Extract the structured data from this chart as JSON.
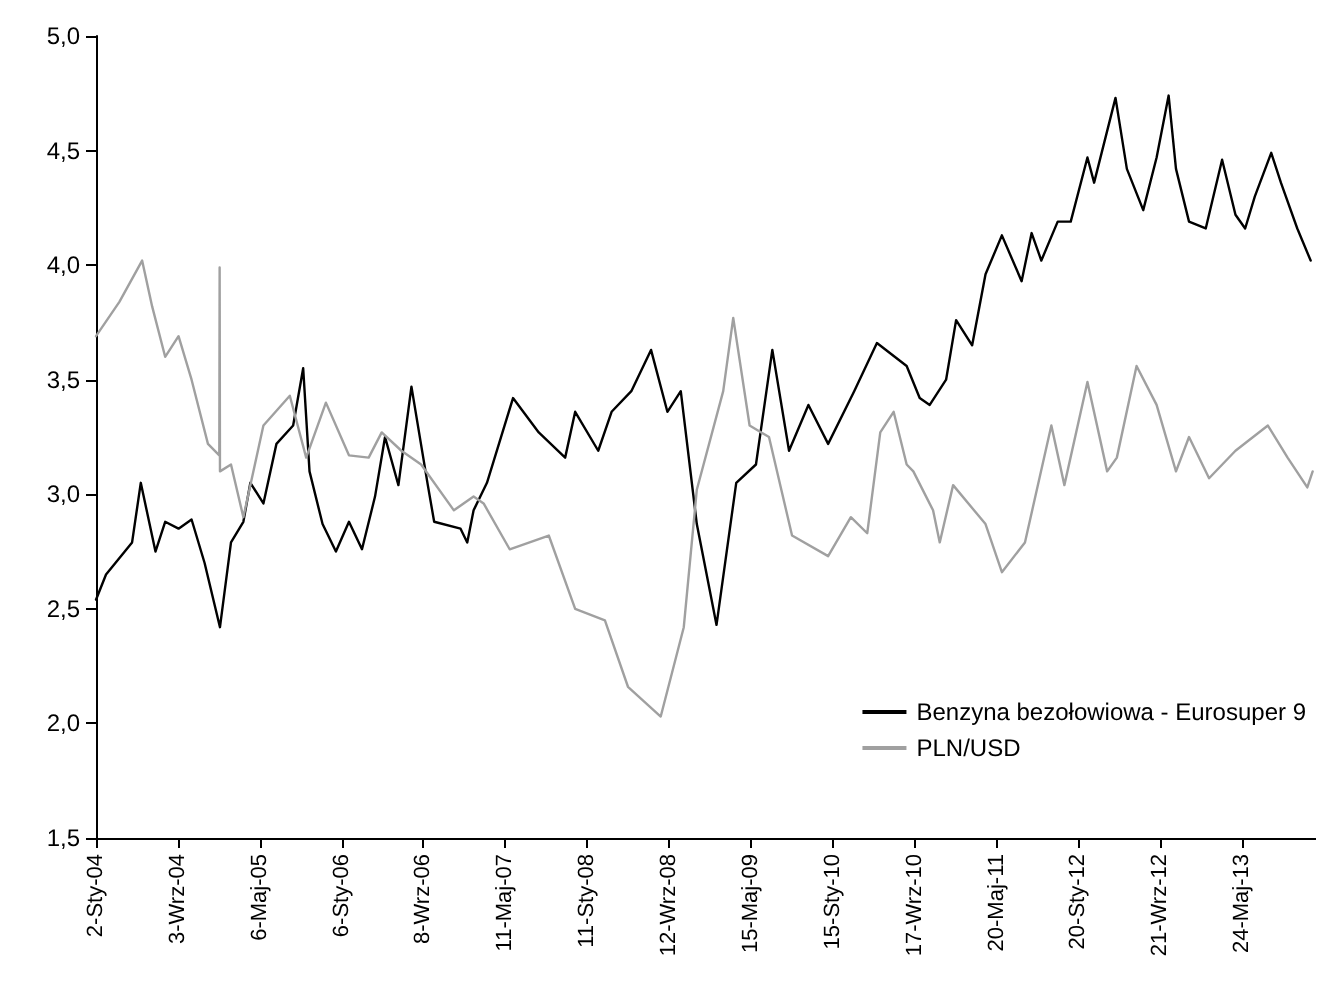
{
  "chart_data": {
    "type": "line",
    "series": [
      {
        "name": "Benzyna bezołowiowa - Eurosuper 9",
        "color": "#000000",
        "x": [
          "2004-01-02",
          "2004-02-01",
          "2004-04-19",
          "2004-05-15",
          "2004-06-28",
          "2004-07-27",
          "2004-09-05",
          "2004-10-14",
          "2004-11-22",
          "2005-01-07",
          "2005-02-09",
          "2005-03-18",
          "2005-04-08",
          "2005-05-17",
          "2005-06-25",
          "2005-08-14",
          "2005-09-13",
          "2005-10-02",
          "2005-11-10",
          "2005-12-20",
          "2006-01-28",
          "2006-03-08",
          "2006-04-16",
          "2006-05-16",
          "2006-06-25",
          "2006-08-03",
          "2006-09-21",
          "2006-10-10",
          "2006-12-28",
          "2007-01-17",
          "2007-02-05",
          "2007-03-17",
          "2007-06-03",
          "2007-08-19",
          "2007-11-06",
          "2007-12-06",
          "2008-02-13",
          "2008-03-24",
          "2008-05-22",
          "2008-07-20",
          "2008-09-07",
          "2008-10-17",
          "2008-12-04",
          "2009-02-01",
          "2009-04-01",
          "2009-05-30",
          "2009-07-18",
          "2009-09-06",
          "2009-11-03",
          "2010-01-01",
          "2010-03-20",
          "2010-05-27",
          "2010-08-24",
          "2010-10-02",
          "2010-11-01",
          "2010-12-20",
          "2011-01-19",
          "2011-03-08",
          "2011-04-17",
          "2011-06-05",
          "2011-08-03",
          "2011-09-02",
          "2011-10-01",
          "2011-11-19",
          "2011-12-28",
          "2012-02-16",
          "2012-03-07",
          "2012-05-10",
          "2012-06-13",
          "2012-08-01",
          "2012-09-10",
          "2012-10-16",
          "2012-11-07",
          "2012-12-16",
          "2013-02-04",
          "2013-03-25",
          "2013-05-04",
          "2013-06-02",
          "2013-07-01",
          "2013-08-19",
          "2013-09-17",
          "2013-11-05",
          "2013-12-15"
        ],
        "values": [
          2.54,
          2.65,
          2.79,
          3.05,
          2.75,
          2.88,
          2.85,
          2.89,
          2.7,
          2.42,
          2.79,
          2.88,
          3.05,
          2.96,
          3.22,
          3.3,
          3.55,
          3.1,
          2.87,
          2.75,
          2.88,
          2.76,
          2.99,
          3.25,
          3.04,
          3.47,
          3.04,
          2.88,
          2.85,
          2.79,
          2.93,
          3.05,
          3.42,
          3.27,
          3.16,
          3.36,
          3.19,
          3.36,
          3.45,
          3.63,
          3.36,
          3.45,
          2.87,
          2.43,
          3.05,
          3.13,
          3.63,
          3.19,
          3.39,
          3.22,
          3.45,
          3.66,
          3.56,
          3.42,
          3.39,
          3.5,
          3.76,
          3.65,
          3.96,
          4.13,
          3.93,
          4.14,
          4.02,
          4.19,
          4.19,
          4.47,
          4.36,
          4.73,
          4.42,
          4.24,
          4.47,
          4.74,
          4.42,
          4.19,
          4.16,
          4.46,
          4.22,
          4.16,
          4.3,
          4.49,
          4.36,
          4.16,
          4.02
        ]
      },
      {
        "name": "PLN/USD",
        "color": "#a0a0a0",
        "x": [
          "2004-01-02",
          "2004-03-12",
          "2004-05-19",
          "2004-06-18",
          "2004-07-27",
          "2004-09-05",
          "2004-10-14",
          "2004-12-02",
          "2005-01-05",
          "2005-01-06",
          "2005-01-07",
          "2005-02-09",
          "2005-03-18",
          "2005-05-17",
          "2005-08-04",
          "2005-09-22",
          "2005-11-20",
          "2006-01-28",
          "2006-03-28",
          "2006-05-06",
          "2006-07-04",
          "2006-09-01",
          "2006-12-08",
          "2007-02-05",
          "2007-03-07",
          "2007-05-24",
          "2007-09-18",
          "2007-12-06",
          "2008-03-04",
          "2008-05-12",
          "2008-08-18",
          "2008-10-26",
          "2008-12-04",
          "2009-02-21",
          "2009-03-23",
          "2009-05-11",
          "2009-07-08",
          "2009-09-15",
          "2010-01-01",
          "2010-03-10",
          "2010-04-28",
          "2010-06-06",
          "2010-07-16",
          "2010-08-24",
          "2010-09-13",
          "2010-11-11",
          "2010-12-01",
          "2011-01-10",
          "2011-04-17",
          "2011-06-05",
          "2011-08-13",
          "2011-10-31",
          "2011-12-09",
          "2012-02-16",
          "2012-04-15",
          "2012-05-14",
          "2012-07-12",
          "2012-09-10",
          "2012-11-07",
          "2012-12-16",
          "2013-02-14",
          "2013-05-04",
          "2013-08-09",
          "2013-10-07",
          "2013-12-05",
          "2013-12-21"
        ],
        "values": [
          3.69,
          3.84,
          4.02,
          3.82,
          3.6,
          3.69,
          3.5,
          3.22,
          3.17,
          3.99,
          3.1,
          3.13,
          2.9,
          3.3,
          3.43,
          3.16,
          3.4,
          3.17,
          3.16,
          3.27,
          3.19,
          3.13,
          2.93,
          2.99,
          2.96,
          2.76,
          2.82,
          2.5,
          2.45,
          2.16,
          2.03,
          2.42,
          3.02,
          3.45,
          3.77,
          3.3,
          3.25,
          2.82,
          2.73,
          2.9,
          2.83,
          3.27,
          3.36,
          3.13,
          3.1,
          2.93,
          2.79,
          3.04,
          2.87,
          2.66,
          2.79,
          3.3,
          3.04,
          3.49,
          3.1,
          3.16,
          3.56,
          3.39,
          3.1,
          3.25,
          3.07,
          3.19,
          3.3,
          3.16,
          3.03,
          3.1
        ]
      }
    ],
    "xlim": [
      "2004-01-02",
      "2013-12-31"
    ],
    "xticks": [
      {
        "value": "2004-01-02",
        "label": "2-Sty-04"
      },
      {
        "value": "2004-09-03",
        "label": "3-Wrz-04"
      },
      {
        "value": "2005-05-06",
        "label": "6-Maj-05"
      },
      {
        "value": "2006-01-06",
        "label": "6-Sty-06"
      },
      {
        "value": "2006-09-08",
        "label": "8-Wrz-06"
      },
      {
        "value": "2007-05-11",
        "label": "11-Maj-07"
      },
      {
        "value": "2008-01-11",
        "label": "11-Sty-08"
      },
      {
        "value": "2008-09-12",
        "label": "12-Wrz-08"
      },
      {
        "value": "2009-05-15",
        "label": "15-Maj-09"
      },
      {
        "value": "2010-01-15",
        "label": "15-Sty-10"
      },
      {
        "value": "2010-09-17",
        "label": "17-Wrz-10"
      },
      {
        "value": "2011-05-20",
        "label": "20-Maj-11"
      },
      {
        "value": "2012-01-20",
        "label": "20-Sty-12"
      },
      {
        "value": "2012-09-21",
        "label": "21-Wrz-12"
      },
      {
        "value": "2013-05-24",
        "label": "24-Maj-13"
      }
    ],
    "ylim": [
      1.5,
      5.0
    ],
    "yticks": [
      {
        "value": 1.5,
        "label": "1,5"
      },
      {
        "value": 2.0,
        "label": "2,0"
      },
      {
        "value": 2.5,
        "label": "2,5"
      },
      {
        "value": 3.0,
        "label": "3,0"
      },
      {
        "value": 3.5,
        "label": "3,5"
      },
      {
        "value": 4.0,
        "label": "4,0"
      },
      {
        "value": 4.5,
        "label": "4,5"
      },
      {
        "value": 5.0,
        "label": "5,0"
      }
    ],
    "grid": false,
    "legend": "bottom right",
    "marker": "none",
    "line_style": "solid"
  }
}
